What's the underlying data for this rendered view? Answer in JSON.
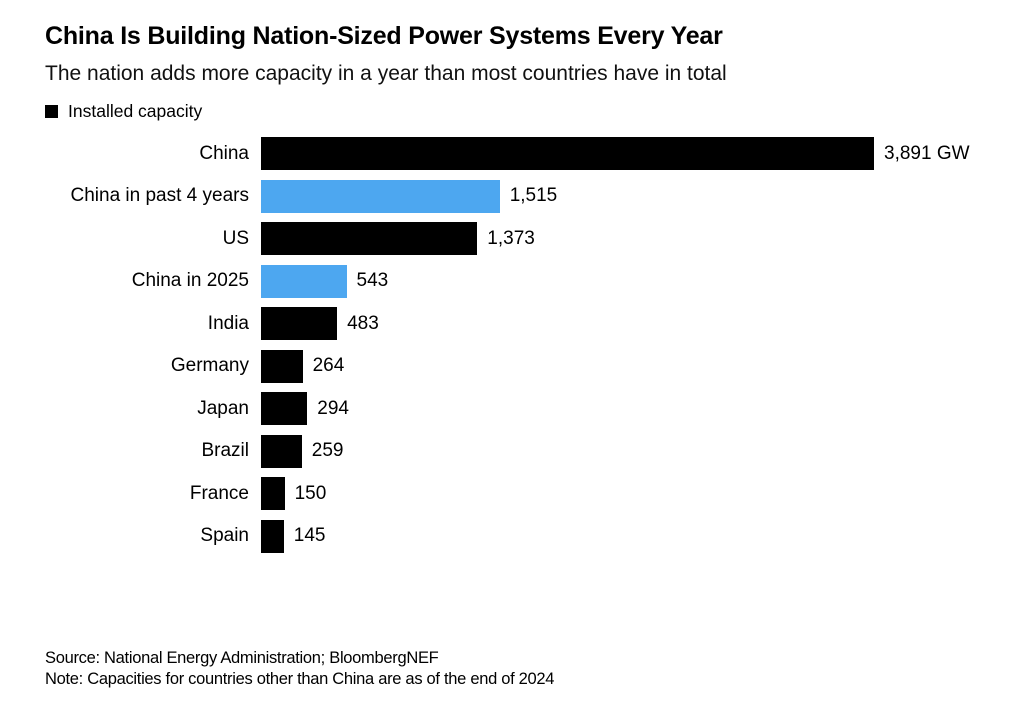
{
  "header": {
    "title": "China Is Building Nation-Sized Power Systems Every Year",
    "subtitle": "The nation adds more capacity in a year than most countries have in total"
  },
  "legend": {
    "label": "Installed capacity",
    "swatch_color": "#000000"
  },
  "chart_data": {
    "type": "bar",
    "orientation": "horizontal",
    "title": "China Is Building Nation-Sized Power Systems Every Year",
    "subtitle": "The nation adds more capacity in a year than most countries have in total",
    "unit": "GW",
    "categories": [
      "China",
      "China in past 4 years",
      "US",
      "China in 2025",
      "India",
      "Germany",
      "Japan",
      "Brazil",
      "France",
      "Spain"
    ],
    "values": [
      3891,
      1515,
      1373,
      543,
      483,
      264,
      294,
      259,
      150,
      145
    ],
    "value_labels": [
      "3,891 GW",
      "1,515",
      "1,373",
      "543",
      "483",
      "264",
      "294",
      "259",
      "150",
      "145"
    ],
    "bar_colors": [
      "#000000",
      "#4DA7F0",
      "#000000",
      "#4DA7F0",
      "#000000",
      "#000000",
      "#000000",
      "#000000",
      "#000000",
      "#000000"
    ],
    "default_color": "#000000",
    "highlight_color": "#4DA7F0",
    "xlim": [
      0,
      3891
    ],
    "grid": false,
    "legend": [
      "Installed capacity"
    ],
    "legend_position": "top-left",
    "value_label_position": "end-of-bar"
  },
  "footer": {
    "source": "Source: National Energy Administration; BloombergNEF",
    "note": "Note: Capacities for countries other than China are as of the end of 2024"
  },
  "colors": {
    "background": "#FFFFFF",
    "text": "#000000",
    "bar_black": "#000000",
    "bar_blue": "#4DA7F0"
  }
}
